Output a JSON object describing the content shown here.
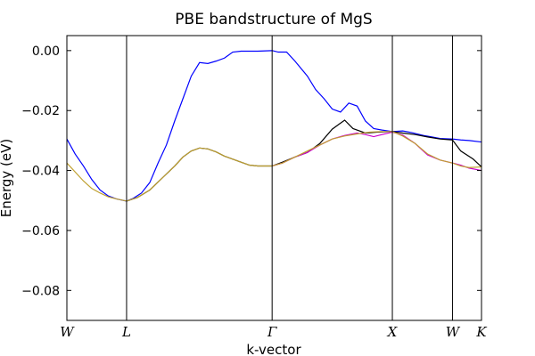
{
  "chart_data": {
    "type": "line",
    "title": "PBE bandstructure of MgS",
    "xlabel": "k-vector",
    "ylabel": "Energy (eV)",
    "xlim": [
      0,
      1
    ],
    "ylim": [
      -0.09,
      0.005
    ],
    "grid": false,
    "legend": "none",
    "y_ticks": [
      0.0,
      -0.02,
      -0.04,
      -0.06,
      -0.08
    ],
    "y_tick_labels": [
      "0.00",
      "−0.02",
      "−0.04",
      "−0.06",
      "−0.08"
    ],
    "high_symmetry_points": [
      {
        "label": "W",
        "x": 0.0
      },
      {
        "label": "L",
        "x": 0.144
      },
      {
        "label": "Γ",
        "x": 0.495
      },
      {
        "label": "X",
        "x": 0.785
      },
      {
        "label": "W",
        "x": 0.93
      },
      {
        "label": "K",
        "x": 1.0
      }
    ],
    "series": [
      {
        "color": "#0000ff",
        "points": [
          [
            0.0,
            -0.0295
          ],
          [
            0.02,
            -0.0345
          ],
          [
            0.04,
            -0.0385
          ],
          [
            0.06,
            -0.043
          ],
          [
            0.08,
            -0.0465
          ],
          [
            0.1,
            -0.0485
          ],
          [
            0.12,
            -0.0495
          ],
          [
            0.144,
            -0.0502
          ],
          [
            0.16,
            -0.0493
          ],
          [
            0.18,
            -0.0475
          ],
          [
            0.2,
            -0.044
          ],
          [
            0.22,
            -0.0375
          ],
          [
            0.24,
            -0.0315
          ],
          [
            0.26,
            -0.0235
          ],
          [
            0.28,
            -0.016
          ],
          [
            0.3,
            -0.0085
          ],
          [
            0.32,
            -0.004
          ],
          [
            0.34,
            -0.0043
          ],
          [
            0.36,
            -0.0035
          ],
          [
            0.38,
            -0.0025
          ],
          [
            0.4,
            -0.0005
          ],
          [
            0.42,
            -0.0002
          ],
          [
            0.44,
            -0.0002
          ],
          [
            0.46,
            -0.0002
          ],
          [
            0.495,
            0.0
          ],
          [
            0.51,
            -0.0005
          ],
          [
            0.53,
            -0.0005
          ],
          [
            0.55,
            -0.0035
          ],
          [
            0.58,
            -0.0085
          ],
          [
            0.6,
            -0.013
          ],
          [
            0.62,
            -0.016
          ],
          [
            0.64,
            -0.0195
          ],
          [
            0.66,
            -0.0205
          ],
          [
            0.68,
            -0.0175
          ],
          [
            0.7,
            -0.0185
          ],
          [
            0.72,
            -0.0235
          ],
          [
            0.74,
            -0.026
          ],
          [
            0.76,
            -0.0265
          ],
          [
            0.785,
            -0.027
          ],
          [
            0.81,
            -0.0268
          ],
          [
            0.83,
            -0.0273
          ],
          [
            0.86,
            -0.0283
          ],
          [
            0.88,
            -0.0288
          ],
          [
            0.9,
            -0.0293
          ],
          [
            0.93,
            -0.0295
          ],
          [
            0.95,
            -0.0298
          ],
          [
            0.97,
            -0.03
          ],
          [
            1.0,
            -0.0305
          ]
        ]
      },
      {
        "color": "#000000",
        "points": [
          [
            0.144,
            -0.0502
          ],
          [
            0.17,
            -0.049
          ],
          [
            0.2,
            -0.0465
          ],
          [
            0.23,
            -0.0425
          ],
          [
            0.26,
            -0.0385
          ],
          [
            0.28,
            -0.0355
          ],
          [
            0.3,
            -0.0335
          ],
          [
            0.32,
            -0.0325
          ],
          [
            0.34,
            -0.0328
          ],
          [
            0.36,
            -0.0338
          ],
          [
            0.38,
            -0.0352
          ],
          [
            0.4,
            -0.0362
          ],
          [
            0.42,
            -0.0372
          ],
          [
            0.44,
            -0.0382
          ],
          [
            0.46,
            -0.0385
          ],
          [
            0.495,
            -0.0385
          ],
          [
            0.52,
            -0.0372
          ],
          [
            0.55,
            -0.0355
          ],
          [
            0.58,
            -0.034
          ],
          [
            0.61,
            -0.031
          ],
          [
            0.64,
            -0.0262
          ],
          [
            0.67,
            -0.0232
          ],
          [
            0.69,
            -0.026
          ],
          [
            0.72,
            -0.0275
          ],
          [
            0.75,
            -0.0272
          ],
          [
            0.785,
            -0.027
          ],
          [
            0.81,
            -0.0275
          ],
          [
            0.84,
            -0.028
          ],
          [
            0.87,
            -0.0288
          ],
          [
            0.9,
            -0.0295
          ],
          [
            0.93,
            -0.0298
          ],
          [
            0.95,
            -0.0335
          ],
          [
            0.98,
            -0.0362
          ],
          [
            1.0,
            -0.0388
          ]
        ]
      },
      {
        "color": "#cc00cc",
        "points": [
          [
            0.495,
            -0.0385
          ],
          [
            0.52,
            -0.0375
          ],
          [
            0.55,
            -0.0355
          ],
          [
            0.58,
            -0.034
          ],
          [
            0.61,
            -0.0315
          ],
          [
            0.64,
            -0.0295
          ],
          [
            0.67,
            -0.0283
          ],
          [
            0.7,
            -0.0275
          ],
          [
            0.72,
            -0.028
          ],
          [
            0.74,
            -0.0287
          ],
          [
            0.76,
            -0.028
          ],
          [
            0.785,
            -0.0272
          ],
          [
            0.81,
            -0.0282
          ],
          [
            0.84,
            -0.031
          ],
          [
            0.87,
            -0.0348
          ],
          [
            0.9,
            -0.0365
          ],
          [
            0.93,
            -0.0375
          ],
          [
            0.95,
            -0.0382
          ],
          [
            0.97,
            -0.0392
          ],
          [
            1.0,
            -0.04
          ]
        ]
      },
      {
        "color": "#bfa030",
        "points": [
          [
            0.0,
            -0.0375
          ],
          [
            0.02,
            -0.0405
          ],
          [
            0.04,
            -0.0435
          ],
          [
            0.06,
            -0.046
          ],
          [
            0.08,
            -0.0475
          ],
          [
            0.1,
            -0.0488
          ],
          [
            0.12,
            -0.0495
          ],
          [
            0.144,
            -0.0502
          ],
          [
            0.17,
            -0.049
          ],
          [
            0.2,
            -0.0465
          ],
          [
            0.23,
            -0.0425
          ],
          [
            0.26,
            -0.0385
          ],
          [
            0.28,
            -0.0355
          ],
          [
            0.3,
            -0.0335
          ],
          [
            0.32,
            -0.0325
          ],
          [
            0.34,
            -0.0328
          ],
          [
            0.36,
            -0.0338
          ],
          [
            0.38,
            -0.0352
          ],
          [
            0.4,
            -0.0362
          ],
          [
            0.42,
            -0.0372
          ],
          [
            0.44,
            -0.0382
          ],
          [
            0.46,
            -0.0385
          ],
          [
            0.495,
            -0.0385
          ],
          [
            0.52,
            -0.0375
          ],
          [
            0.55,
            -0.0355
          ],
          [
            0.58,
            -0.0335
          ],
          [
            0.61,
            -0.0315
          ],
          [
            0.64,
            -0.0295
          ],
          [
            0.67,
            -0.0285
          ],
          [
            0.7,
            -0.0278
          ],
          [
            0.73,
            -0.0272
          ],
          [
            0.76,
            -0.027
          ],
          [
            0.785,
            -0.027
          ],
          [
            0.81,
            -0.0285
          ],
          [
            0.84,
            -0.031
          ],
          [
            0.87,
            -0.0345
          ],
          [
            0.9,
            -0.0365
          ],
          [
            0.93,
            -0.0375
          ],
          [
            0.95,
            -0.0385
          ],
          [
            0.97,
            -0.039
          ],
          [
            1.0,
            -0.0388
          ]
        ]
      }
    ]
  }
}
